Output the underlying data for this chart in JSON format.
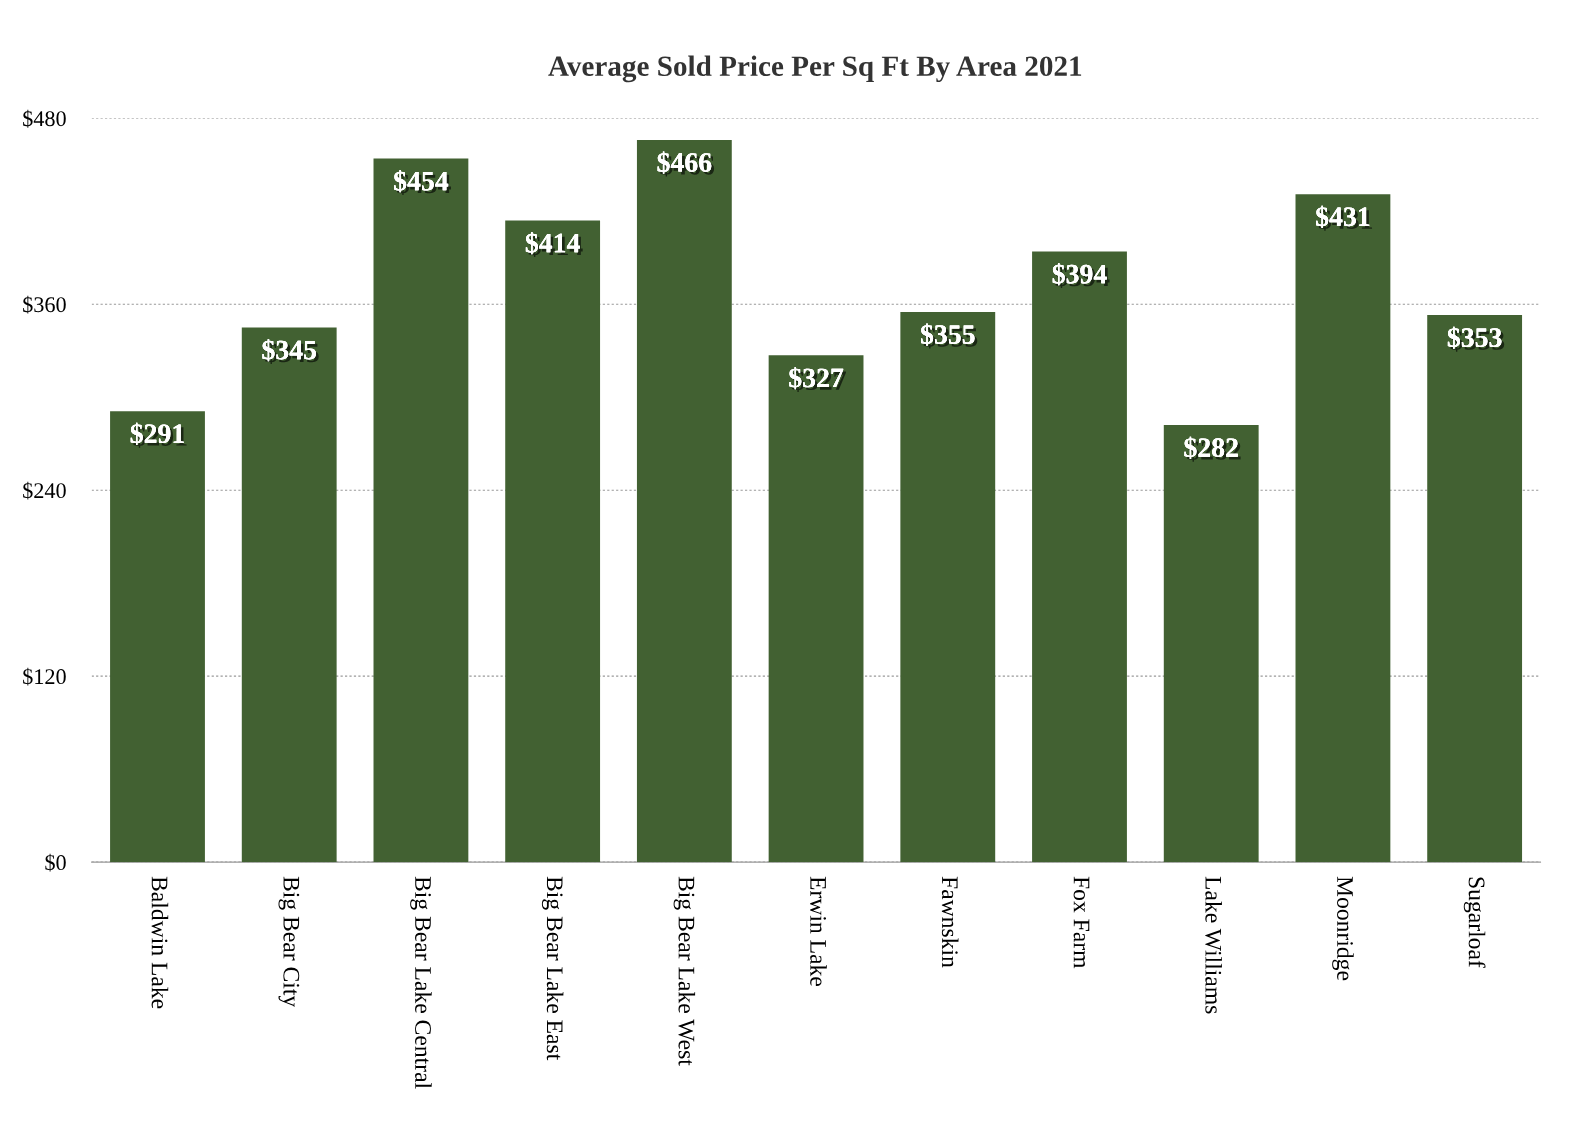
{
  "chart_data": {
    "type": "bar",
    "title": "Average Sold Price Per Sq Ft By Area 2021",
    "categories": [
      "Baldwin Lake",
      "Big Bear City",
      "Big Bear Lake Central",
      "Big Bear Lake East",
      "Big Bear Lake West",
      "Erwin Lake",
      "Fawnskin",
      "Fox Farm",
      "Lake Williams",
      "Moonridge",
      "Sugarloaf"
    ],
    "values": [
      291,
      345,
      454,
      414,
      466,
      327,
      355,
      394,
      282,
      431,
      353
    ],
    "value_labels": [
      "$291",
      "$345",
      "$454",
      "$414",
      "$466",
      "$327",
      "$355",
      "$394",
      "$282",
      "$431",
      "$353"
    ],
    "color": "#426132",
    "ylim": [
      0,
      480
    ],
    "yticks": [
      {
        "value": 0,
        "label": "$0"
      },
      {
        "value": 120,
        "label": "$120"
      },
      {
        "value": 240,
        "label": "$240"
      },
      {
        "value": 360,
        "label": "$360"
      },
      {
        "value": 480,
        "label": "$480"
      }
    ],
    "grid": "y",
    "legend": false
  }
}
